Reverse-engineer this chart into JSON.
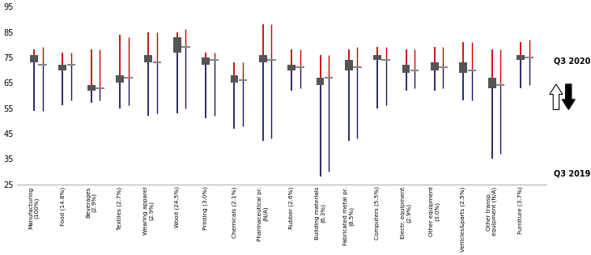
{
  "categories": [
    "Manufacturing\n(100%)",
    "Food (14.8%)",
    "Beverages\n(2.9%)",
    "Textiles (2.7%)",
    "Wearing apparel\n(2.9%)",
    "Wood (24.5%)",
    "Printing (3.0%)",
    "Chemicals (2.1%)",
    "Pharmaceutical pr.\n(N/A)",
    "Rubber (2.6%)",
    "Building materials\n(6.3%)",
    "Fabricated metal pr.\n(8.5%)",
    "Computers (5.5%)",
    "Electr. equipment\n(2.9%)",
    "Other equipment\n(3.0%)",
    "Vehicles&parts (2.5%)",
    "Other transp.\nequipment (N/A)",
    "Furniture (3.7%)"
  ],
  "q3_2020_box_low": [
    73,
    70,
    62,
    65,
    73,
    77,
    72,
    65,
    73,
    70,
    64,
    70,
    74,
    69,
    70,
    69,
    63,
    74
  ],
  "q3_2020_box_high": [
    76,
    72,
    64,
    68,
    76,
    83,
    75,
    68,
    76,
    72,
    67,
    74,
    76,
    72,
    73,
    73,
    67,
    76
  ],
  "q3_2020_whisker_low": [
    54,
    56,
    57,
    55,
    52,
    53,
    51,
    47,
    42,
    62,
    28,
    42,
    55,
    62,
    62,
    58,
    35,
    63
  ],
  "q3_2020_whisker_high": [
    78,
    77,
    78,
    84,
    85,
    85,
    77,
    73,
    88,
    78,
    76,
    78,
    79,
    78,
    79,
    81,
    78,
    81
  ],
  "q3_2019_median": [
    72,
    72,
    63,
    67,
    73,
    79,
    74,
    66,
    74,
    71,
    67,
    71,
    74,
    70,
    71,
    70,
    64,
    75
  ],
  "q3_2019_whisker_low": [
    54,
    58,
    58,
    56,
    53,
    55,
    52,
    48,
    43,
    63,
    30,
    43,
    56,
    63,
    63,
    58,
    37,
    64
  ],
  "q3_2019_whisker_high": [
    79,
    77,
    78,
    83,
    85,
    86,
    77,
    73,
    88,
    78,
    76,
    79,
    79,
    78,
    79,
    81,
    78,
    82
  ],
  "ylim": [
    25,
    95
  ],
  "yticks": [
    25,
    35,
    45,
    55,
    65,
    75,
    85,
    95
  ],
  "box_color": "#555555",
  "line_color_top": "#cc0000",
  "line_color_bottom": "#1a1a5e"
}
